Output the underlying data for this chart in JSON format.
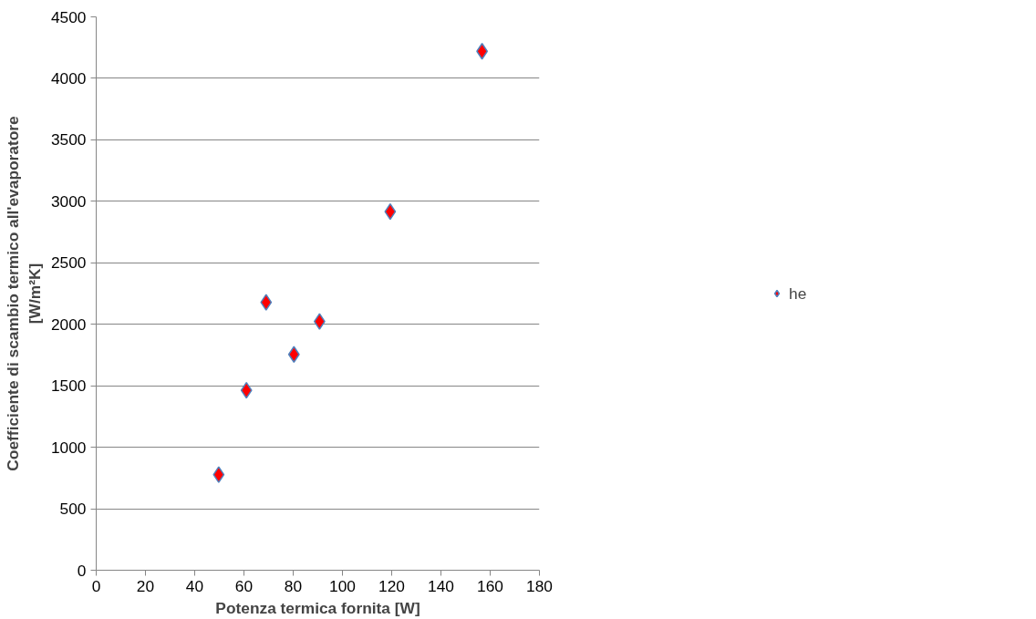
{
  "chart_data": {
    "type": "scatter",
    "xlabel": "Potenza termica fornita [W]",
    "ylabel": "Coefficiente di scambio termico all'evaporatore\n[W/m²K]",
    "x": [
      49.75,
      61.0,
      69.0,
      80.3,
      90.7,
      119.4,
      156.7
    ],
    "series": [
      {
        "name": "he",
        "color": "#ff0000",
        "values": [
          778,
          1463,
          2179,
          1755,
          2023,
          2916,
          4220
        ]
      }
    ],
    "xlim": [
      0,
      180
    ],
    "xticks": [
      0,
      20,
      40,
      60,
      80,
      100,
      120,
      140,
      160,
      180
    ],
    "ylim": [
      0,
      4500
    ],
    "yticks": [
      0,
      500,
      1000,
      1500,
      2000,
      2500,
      3000,
      3500,
      4000,
      4500
    ],
    "grid": "y",
    "legend": "right",
    "marker": "diamond"
  }
}
